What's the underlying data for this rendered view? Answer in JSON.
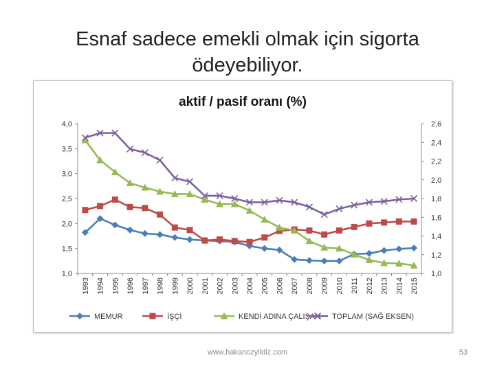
{
  "slide": {
    "title_line1": "Esnaf sadece emekli olmak için sigorta",
    "title_line2": "ödeyebiliyor.",
    "footer_url": "www.hakanozyildiz.com",
    "page_number": "53"
  },
  "chart_data": {
    "type": "line",
    "title": "aktif / pasif oranı (%)",
    "categories": [
      "1993",
      "1994",
      "1995",
      "1996",
      "1997",
      "1998",
      "1999",
      "2000",
      "2001",
      "2002",
      "2003",
      "2004",
      "2005",
      "2006",
      "2007",
      "2008",
      "2009",
      "2010",
      "2011",
      "2012",
      "2013",
      "2014",
      "2015"
    ],
    "y_left": {
      "min": 1.0,
      "max": 4.0,
      "ticks": [
        "1,0",
        "1,5",
        "2,0",
        "2,5",
        "3,0",
        "3,5",
        "4,0"
      ]
    },
    "y_right": {
      "min": 1.0,
      "max": 2.6,
      "ticks": [
        "1,0",
        "1,2",
        "1,4",
        "1,6",
        "1,8",
        "2,0",
        "2,2",
        "2,4",
        "2,6"
      ]
    },
    "grid": false,
    "legend_position": "bottom",
    "series": [
      {
        "name": "MEMUR",
        "axis": "left",
        "marker": "diamond",
        "color": "#4a7ebb",
        "values": [
          1.82,
          2.1,
          1.97,
          1.87,
          1.8,
          1.78,
          1.72,
          1.68,
          1.66,
          1.65,
          1.63,
          1.55,
          1.5,
          1.47,
          1.28,
          1.26,
          1.25,
          1.25,
          1.39,
          1.4,
          1.46,
          1.49,
          1.51
        ]
      },
      {
        "name": "İŞÇİ",
        "axis": "left",
        "marker": "square",
        "color": "#be4b48",
        "values": [
          2.27,
          2.35,
          2.48,
          2.33,
          2.31,
          2.18,
          1.92,
          1.87,
          1.66,
          1.68,
          1.65,
          1.63,
          1.72,
          1.85,
          1.88,
          1.86,
          1.78,
          1.86,
          1.93,
          2.0,
          2.02,
          2.04,
          2.04
        ]
      },
      {
        "name": "KENDİ ADINA ÇALIŞAN",
        "axis": "left",
        "marker": "triangle",
        "color": "#98b954",
        "values": [
          3.67,
          3.27,
          3.03,
          2.81,
          2.72,
          2.64,
          2.59,
          2.59,
          2.48,
          2.39,
          2.39,
          2.26,
          2.08,
          1.92,
          1.86,
          1.65,
          1.52,
          1.5,
          1.38,
          1.27,
          1.21,
          1.2,
          1.16
        ]
      },
      {
        "name": "TOPLAM (SAĞ EKSEN)",
        "axis": "right",
        "marker": "x",
        "color": "#7d5fa0",
        "values": [
          2.45,
          2.5,
          2.5,
          2.33,
          2.29,
          2.21,
          2.02,
          1.98,
          1.83,
          1.83,
          1.8,
          1.76,
          1.76,
          1.78,
          1.76,
          1.71,
          1.63,
          1.69,
          1.73,
          1.76,
          1.77,
          1.79,
          1.8
        ]
      }
    ]
  }
}
